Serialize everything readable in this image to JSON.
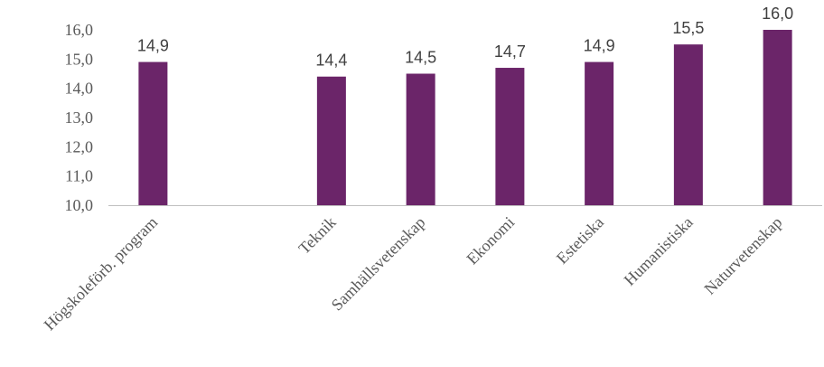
{
  "chart_data": {
    "type": "bar",
    "categories": [
      "Högskoleförb. program",
      "",
      "Teknik",
      "Samhällsvetenskap",
      "Ekonomi",
      "Estetiska",
      "Humanistiska",
      "Naturvetenskap"
    ],
    "values": [
      14.9,
      null,
      14.4,
      14.5,
      14.7,
      14.9,
      15.5,
      16.0
    ],
    "data_labels": [
      "14,9",
      "",
      "14,4",
      "14,5",
      "14,7",
      "14,9",
      "15,5",
      "16,0"
    ],
    "yticks": [
      "10,0",
      "11,0",
      "12,0",
      "13,0",
      "14,0",
      "15,0",
      "16,0"
    ],
    "ylim": [
      10,
      16
    ],
    "grid": false,
    "colors": {
      "bar": "#6b2569",
      "axis": "#bfbfbf"
    }
  }
}
